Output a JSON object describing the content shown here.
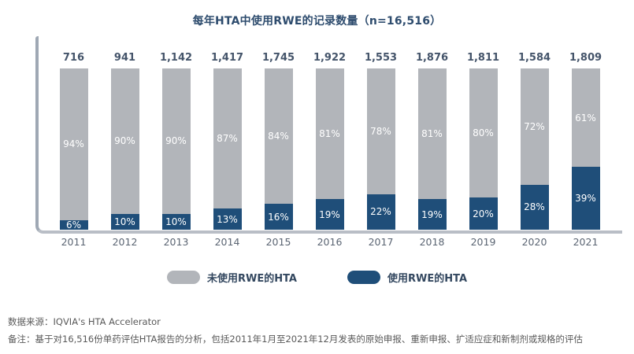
{
  "chart_data": {
    "type": "bar",
    "subtype": "stacked-100-percent",
    "title": "每年HTA中使用RWE的记录数量（n=16,516）",
    "categories": [
      "2011",
      "2012",
      "2013",
      "2014",
      "2015",
      "2016",
      "2017",
      "2018",
      "2019",
      "2020",
      "2021"
    ],
    "totals": [
      716,
      941,
      1142,
      1417,
      1745,
      1922,
      1553,
      1876,
      1811,
      1584,
      1809
    ],
    "totals_display": [
      "716",
      "941",
      "1,142",
      "1,417",
      "1,745",
      "1,922",
      "1,553",
      "1,876",
      "1,811",
      "1,584",
      "1,809"
    ],
    "series": [
      {
        "name": "未使用RWE的HTA",
        "color": "#b2b5ba",
        "values": [
          94,
          90,
          90,
          87,
          84,
          81,
          78,
          81,
          80,
          72,
          61
        ]
      },
      {
        "name": "使用RWE的HTA",
        "color": "#1f4e79",
        "values": [
          6,
          10,
          10,
          13,
          16,
          19,
          22,
          19,
          20,
          28,
          39
        ]
      }
    ],
    "value_suffix": "%",
    "ylim": [
      0,
      100
    ],
    "grid": false,
    "legend_position": "bottom",
    "xlabel": "",
    "ylabel": ""
  },
  "legend": {
    "no_rwe_label": "未使用RWE的HTA",
    "rwe_label": "使用RWE的HTA"
  },
  "colors": {
    "gray_bar": "#b2b5ba",
    "blue_bar": "#1f4e79",
    "title_text": "#2e4c6e",
    "axis_line": "#9fa8b4",
    "footer_text": "#595959"
  },
  "footer": {
    "source": "数据来源：IQVIA's HTA Accelerator",
    "note": "备注：基于对16,516份单药评估HTA报告的分析，包括2011年1月至2021年12月发表的原始申报、重新申报、扩适应症和新制剂或规格的评估"
  }
}
